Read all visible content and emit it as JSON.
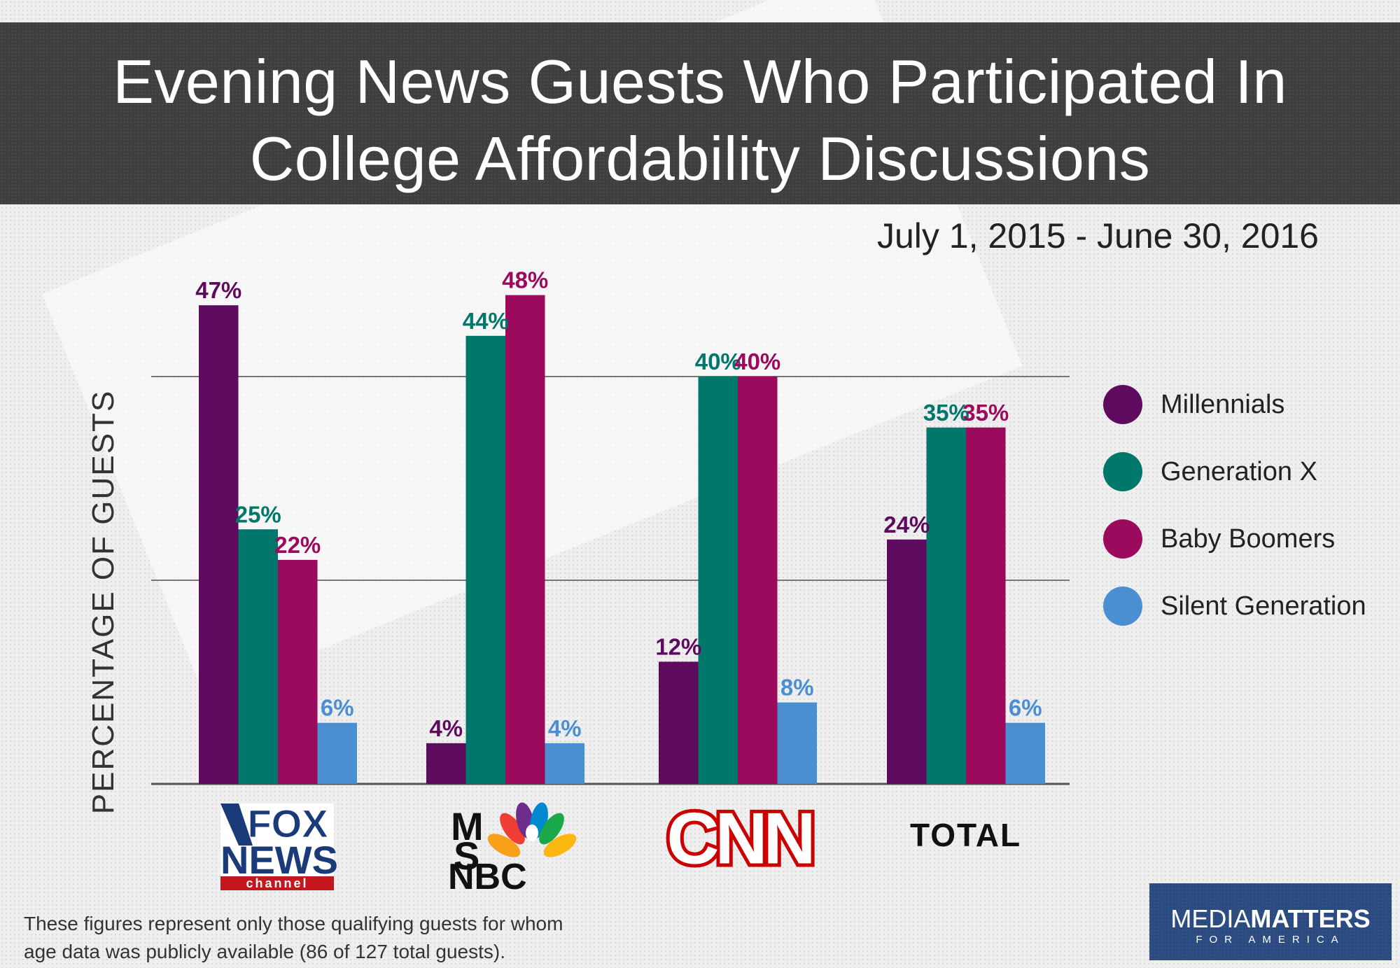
{
  "title_line1": "Evening News Guests Who Participated In",
  "title_line2": "College Affordability Discussions",
  "subtitle": "July 1, 2015 - June 30, 2016",
  "footnote_line1": "These figures represent only those qualifying guests for whom",
  "footnote_line2": "age data was publicly available (86 of 127 total guests).",
  "brand": {
    "main_light": "MEDIA",
    "main_bold": "MATTERS",
    "sub": "FOR AMERICA"
  },
  "logos": {
    "fox": {
      "line1": "FOX",
      "line2": "NEWS",
      "line3": "channel"
    },
    "msnbc": {
      "line1": "M",
      "line2": "S",
      "line3": "NBC"
    },
    "cnn": {
      "text": "CNN"
    },
    "total": "TOTAL"
  },
  "chart_data": {
    "type": "bar",
    "categories": [
      "Fox News",
      "MSNBC",
      "CNN",
      "TOTAL"
    ],
    "ylabel": "PERCENTAGE OF GUESTS",
    "ylim": [
      0,
      60
    ],
    "grid": true,
    "legend_position": "right",
    "series": [
      {
        "name": "Millennials",
        "color": "#5e0a5f",
        "values": [
          47,
          4,
          12,
          24
        ],
        "labels": [
          "47%",
          "4%",
          "12%",
          "24%"
        ]
      },
      {
        "name": "Generation X",
        "color": "#00776b",
        "values": [
          25,
          44,
          40,
          35
        ],
        "labels": [
          "25%",
          "44%",
          "40%",
          "35%"
        ]
      },
      {
        "name": "Baby Boomers",
        "color": "#9b0a5c",
        "values": [
          22,
          48,
          40,
          35
        ],
        "labels": [
          "22%",
          "48%",
          "40%",
          "35%"
        ]
      },
      {
        "name": "Silent Generation",
        "color": "#4a8fd1",
        "values": [
          6,
          4,
          8,
          6
        ],
        "labels": [
          "6%",
          "4%",
          "8%",
          "6%"
        ]
      }
    ]
  }
}
